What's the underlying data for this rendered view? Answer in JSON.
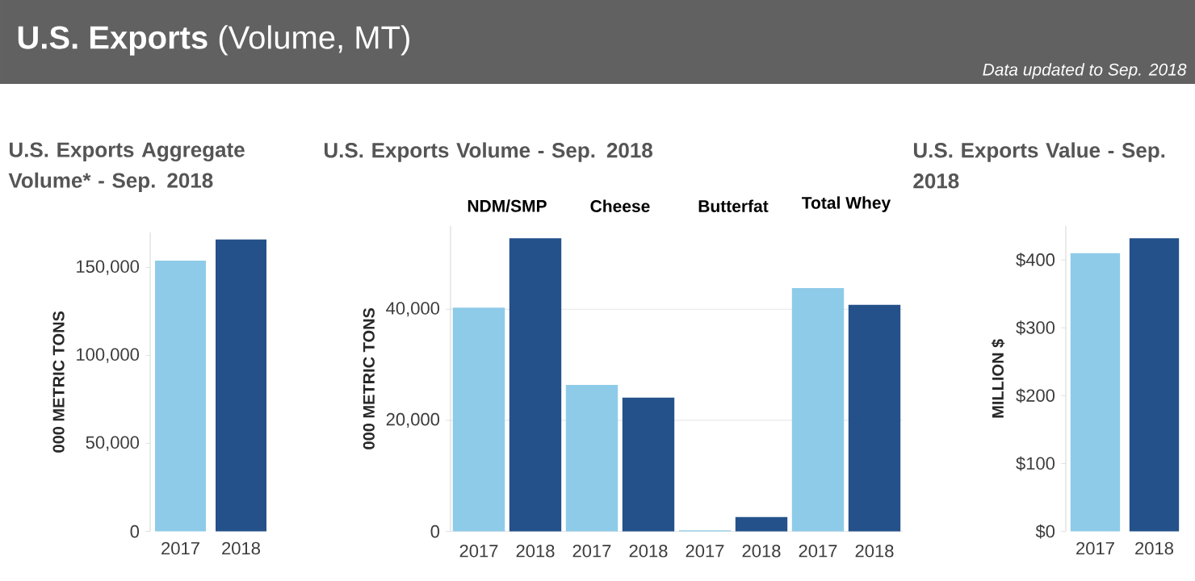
{
  "chart_data": [
    {
      "type": "other",
      "title": "**U.S. Exports** (Volume, MT)",
      "annotations": [
        "Data updated to Sep. 2018"
      ]
    },
    {
      "type": "bar",
      "title": "U.S. Exports Aggregate Volume* - Sep. 2018",
      "ylabel": "000 METRIC TONS",
      "categories": [
        "2017",
        "2018"
      ],
      "values": [
        154000,
        166000
      ],
      "colors": [
        "#8ecbe8",
        "#24518a"
      ],
      "ylim": [
        0,
        170000
      ],
      "yticks": [
        0,
        {
          "value": 50000,
          "label": "50,000"
        },
        {
          "value": 100000,
          "label": "100,000"
        },
        {
          "value": 150000,
          "label": "150,000"
        }
      ]
    },
    {
      "type": "bar",
      "title": "U.S. Exports Volume - Sep. 2018",
      "ylabel": "000 METRIC TONS",
      "categories": [
        "NDM/SMP",
        "Cheese",
        "Butterfat",
        "Total Whey"
      ],
      "series": [
        {
          "name": "2017",
          "color": "#8ecbe8",
          "values": [
            40300,
            26400,
            200,
            43800
          ]
        },
        {
          "name": "2018",
          "color": "#24518a",
          "values": [
            52800,
            24100,
            2600,
            40800
          ]
        }
      ],
      "ylim": [
        0,
        55000
      ],
      "yticks": [
        0,
        {
          "value": 20000,
          "label": "20,000"
        },
        {
          "value": 40000,
          "label": "40,000"
        }
      ],
      "grid": "y"
    },
    {
      "type": "bar",
      "title": "U.S. Exports Value - Sep. 2018",
      "ylabel": "MILLION $",
      "categories": [
        "2017",
        "2018"
      ],
      "values": [
        410,
        432
      ],
      "colors": [
        "#8ecbe8",
        "#24518a"
      ],
      "ylim": [
        0,
        450
      ],
      "yticks": [
        {
          "value": 0,
          "label": "$0"
        },
        {
          "value": 100,
          "label": "$100"
        },
        {
          "value": 200,
          "label": "$200"
        },
        {
          "value": 300,
          "label": "$300"
        },
        {
          "value": 400,
          "label": "$400"
        }
      ]
    }
  ]
}
